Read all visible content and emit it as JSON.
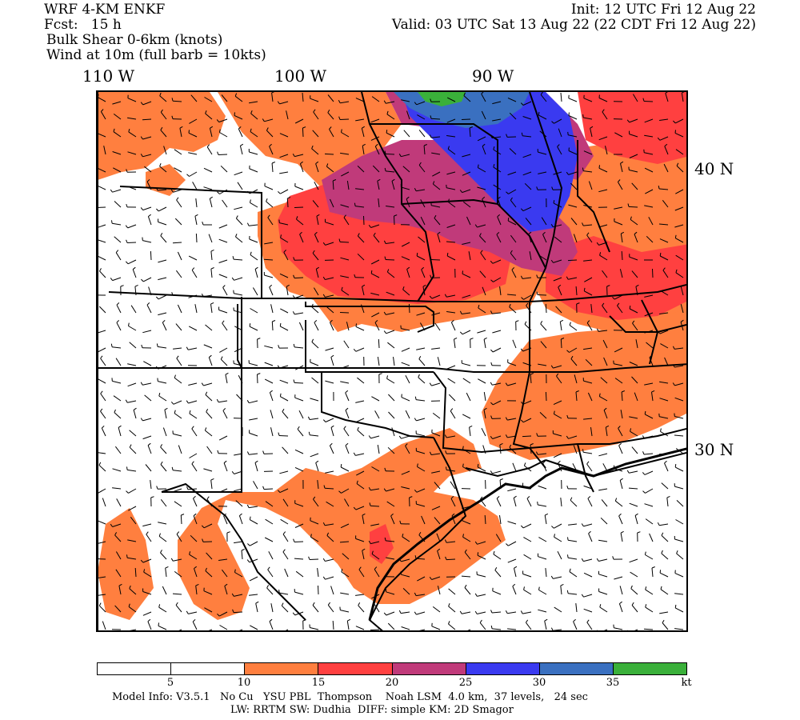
{
  "header": {
    "model": "WRF 4-KM ENKF",
    "fcst": "Fcst:   15 h",
    "field": "Bulk Shear 0-6km (knots)",
    "wind": "Wind at 10m (full barb = 10kts)",
    "init": "Init: 12 UTC Fri 12 Aug 22",
    "valid": "Valid: 03 UTC Sat 13 Aug 22 (22 CDT Fri 12 Aug 22)"
  },
  "axes": {
    "lon_labels": [
      "110 W",
      "100 W",
      "90 W"
    ],
    "lat_labels": [
      "40 N",
      "30 N"
    ]
  },
  "colorbar": {
    "unit": "kt",
    "ticks": [
      "5",
      "10",
      "15",
      "20",
      "25",
      "30",
      "35"
    ],
    "colors": [
      "#ffffff",
      "#ffffff",
      "#ff7f3f",
      "#ff4040",
      "#c03a7a",
      "#3a3af0",
      "#3a70c0",
      "#3ab03a"
    ]
  },
  "footer": {
    "line1": "Model Info: V3.5.1   No Cu   YSU PBL  Thompson    Noah LSM  4.0 km,  37 levels,   24 sec",
    "line2": "LW: RRTM SW: Dudhia  DIFF: simple KM: 2D Smagor"
  }
}
